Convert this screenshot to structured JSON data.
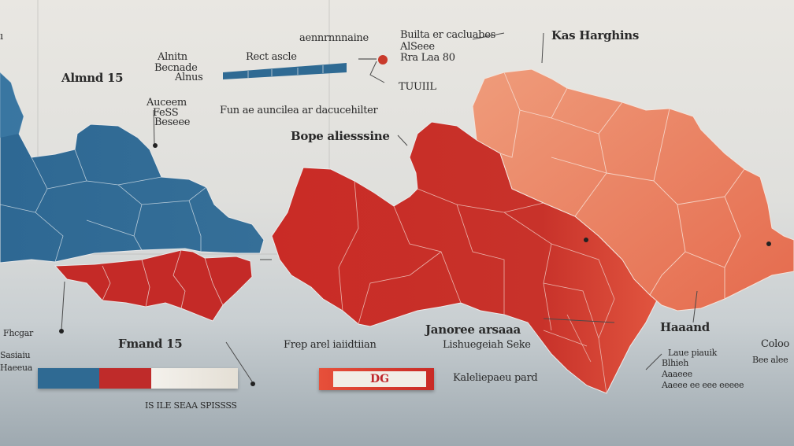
{
  "map": {
    "labels": [
      {
        "id": "lbl-top-left-edge",
        "text": "ı"
      },
      {
        "id": "lbl-almond",
        "text": "Almnd 15"
      },
      {
        "id": "lbl-alinta",
        "text": "Alnitn"
      },
      {
        "id": "lbl-becnade",
        "text": "Becnade"
      },
      {
        "id": "lbl-alnus",
        "text": "Alnus"
      },
      {
        "id": "lbl-rect-scale",
        "text": "Rect ascle"
      },
      {
        "id": "lbl-annexnnn",
        "text": "aennrnnnaine"
      },
      {
        "id": "lbl-aucesem",
        "text": "Auceem"
      },
      {
        "id": "lbl-fesss",
        "text": "FeSS"
      },
      {
        "id": "lbl-besee",
        "text": "Beseee"
      },
      {
        "id": "lbl-fun-annotation",
        "text": "Fun ae auncilea ar dacucehilter"
      },
      {
        "id": "lbl-bope-alicssine",
        "text": "Bope aliesssine"
      },
      {
        "id": "lbl-builta",
        "text": "Builta er cacluabes"
      },
      {
        "id": "lbl-alsese",
        "text": "AlSeee"
      },
      {
        "id": "lbl-rra-laa-80",
        "text": "Rra Laa 80"
      },
      {
        "id": "lbl-tuuiiil",
        "text": "TUUIIL"
      },
      {
        "id": "lbl-kas-harghins",
        "text": "Kas Harghins"
      },
      {
        "id": "lbl-fmand-15",
        "text": "Fmand 15"
      },
      {
        "id": "lbl-freep-arel",
        "text": "Frep arel iaiidtiian"
      },
      {
        "id": "lbl-janoree",
        "text": "Janoree arsaaa"
      },
      {
        "id": "lbl-lishuesiaeh",
        "text": "Lishuegeiah Seke"
      },
      {
        "id": "lbl-kalelepaur",
        "text": "Kaleliepaeu pard"
      },
      {
        "id": "lbl-haaand",
        "text": "Haaand"
      },
      {
        "id": "lbl-lnue-piaeuk",
        "text": "Laue piauik"
      },
      {
        "id": "lbl-blhieh",
        "text": "Blhieh"
      },
      {
        "id": "lbl-aacsee",
        "text": "Aaaeee"
      },
      {
        "id": "lbl-aaeee-ee-ee",
        "text": "Aaeee ee eee eeeee"
      },
      {
        "id": "lbl-coloo",
        "text": "Coloo"
      },
      {
        "id": "lbl-bee-alee",
        "text": "Bee alee"
      },
      {
        "id": "lbl-left-s1",
        "text": "Fhcgar"
      },
      {
        "id": "lbl-left-s2",
        "text": "Sasiaiu"
      },
      {
        "id": "lbl-left-s3",
        "text": "Haeeua"
      },
      {
        "id": "lbl-bottom-left",
        "text": "IS ILE SEAA SPISSSS"
      }
    ],
    "badge_text": "DG",
    "colors": {
      "blue_region": "#2f6a93",
      "blue_light": "#4d89b0",
      "red_region": "#c62a27",
      "red_mid": "#e0503c",
      "salmon": "#ea8a69",
      "legend_blue": "#2f6a93",
      "legend_red": "#bf2b2a",
      "legend_light": "#f0ece4"
    }
  }
}
